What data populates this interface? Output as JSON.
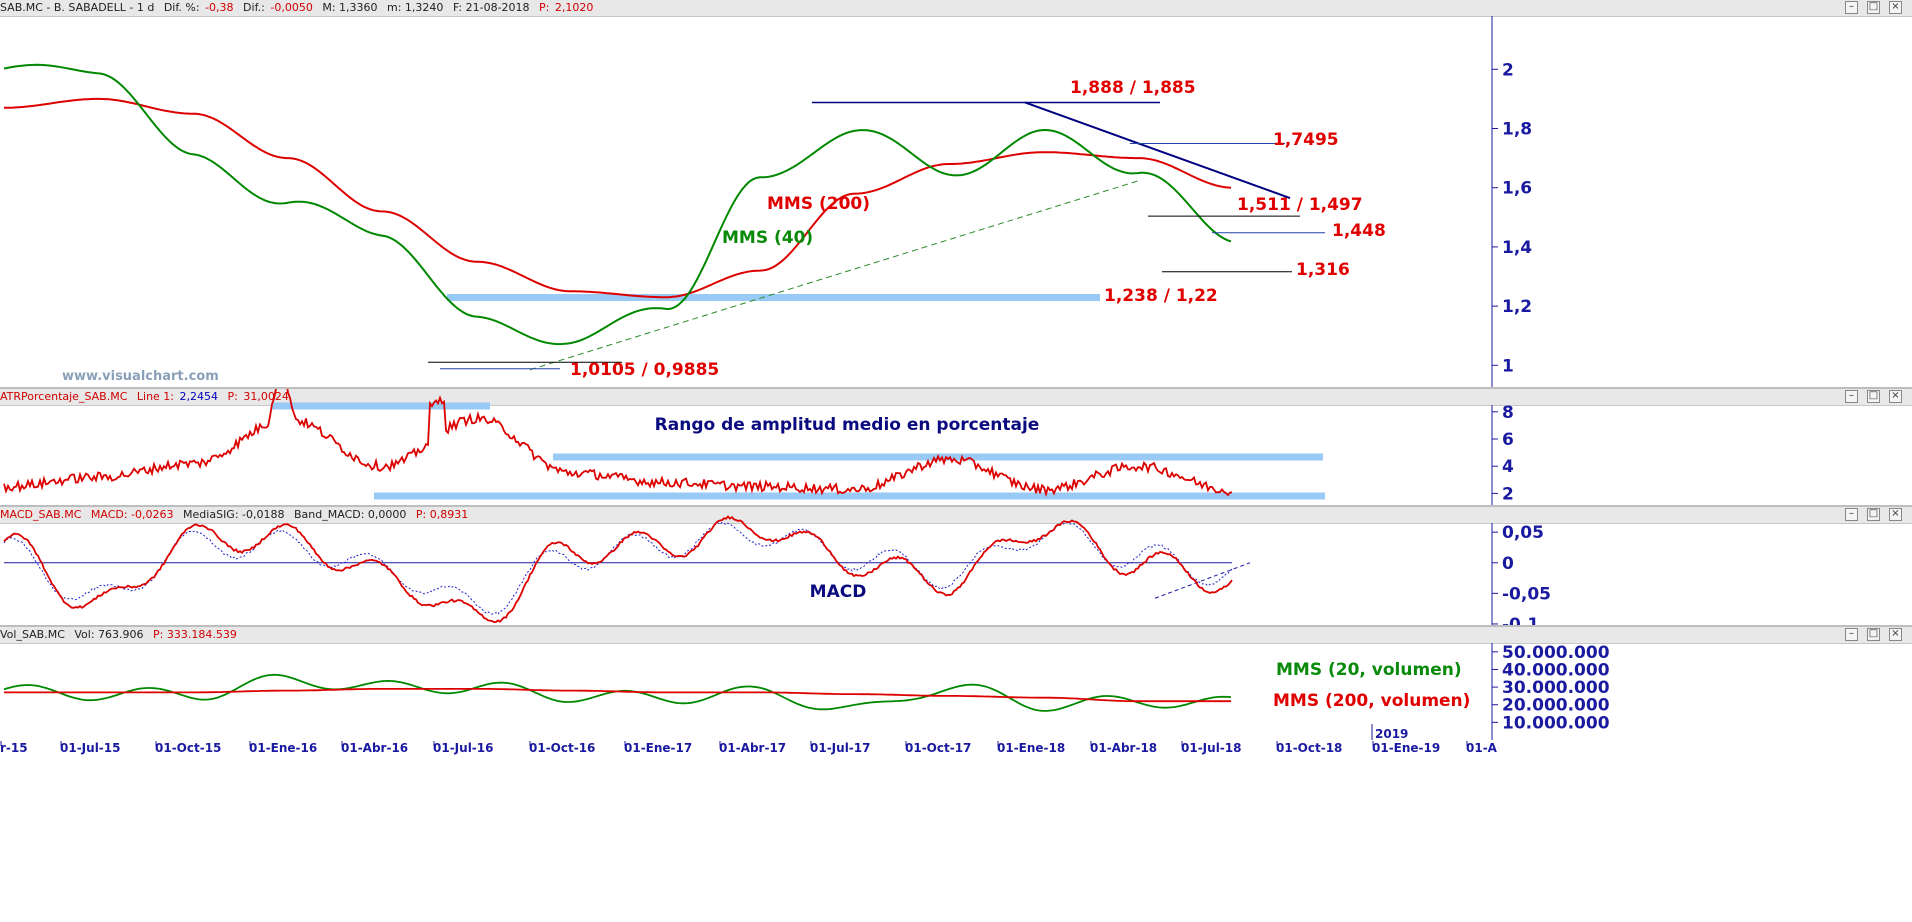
{
  "colors": {
    "price": "#0000dd",
    "mms40": "#008800",
    "mms200": "#dd0000",
    "navy": "#000080",
    "lightblue": "#99c9f5",
    "annotation_red": "#e00000",
    "annotation_navy": "#0b0b80",
    "annotation_green": "#0a8a0a"
  },
  "price_pane": {
    "header": {
      "symbol": "SAB.MC - B. SABADELL - 1 d",
      "dif_pct_label": "Dif. %:",
      "dif_pct": "-0,38",
      "dif_label": "Dif.:",
      "dif": "-0,0050",
      "max": "M: 1,3360",
      "min": "m: 1,3240",
      "date": "F: 21-08-2018",
      "p_label": "P:",
      "p": "2,1020"
    },
    "watermark": "www.visualchart.com",
    "y_ticks": [
      "2",
      "1,8",
      "1,6",
      "1,4",
      "1,2",
      "1"
    ],
    "annotations": {
      "top_resistance": "1,888 / 1,885",
      "r1": "1,7495",
      "r2": "1,511 / 1,497",
      "r3": "1,448",
      "last": "1,316",
      "support": "1,238 / 1,22",
      "bottom": "1,0105 / 0,9885",
      "mms200": "MMS (200)",
      "mms40": "MMS (40)"
    }
  },
  "atr_pane": {
    "header": {
      "name": "ATRPorcentaje_SAB.MC",
      "line": "Line 1:",
      "line_val": "2,2454",
      "p_label": "P:",
      "p": "31,0024"
    },
    "title": "Rango de amplitud medio en porcentaje",
    "y_ticks": [
      "8",
      "6",
      "4",
      "2"
    ]
  },
  "macd_pane": {
    "header": {
      "name": "MACD_SAB.MC",
      "macd": "MACD: -0,0263",
      "sig": "MediaSIG: -0,0188",
      "band": "Band_MACD: 0,0000",
      "p": "P: 0,8931"
    },
    "title": "MACD",
    "y_ticks": [
      "0,05",
      "0",
      "-0,05",
      "-0,1"
    ]
  },
  "vol_pane": {
    "header": {
      "name": "Vol_SAB.MC",
      "vol": "Vol: 763.906",
      "p": "P: 333.184.539"
    },
    "y_ticks": [
      "50.000.000",
      "40.000.000",
      "30.000.000",
      "20.000.000",
      "10.000.000"
    ],
    "legend_mms20": "MMS (20, volumen)",
    "legend_mms200": "MMS (200, volumen)",
    "year_marker": "2019"
  },
  "x_axis": {
    "labels": [
      "r-15",
      "01-Jul-15",
      "01-Oct-15",
      "01-Ene-16",
      "01-Abr-16",
      "01-Jul-16",
      "01-Oct-16",
      "01-Ene-17",
      "01-Abr-17",
      "01-Jul-17",
      "01-Oct-17",
      "01-Ene-18",
      "01-Abr-18",
      "01-Jul-18",
      "01-Oct-18",
      "01-Ene-19",
      "01-A"
    ]
  },
  "chart_data": [
    {
      "type": "line",
      "title": "SAB.MC - B. SABADELL - 1 d",
      "x": [
        "r-15",
        "01-Jul-15",
        "01-Oct-15",
        "01-Ene-16",
        "01-Abr-16",
        "01-Jul-16",
        "01-Oct-16",
        "01-Ene-17",
        "01-Abr-17",
        "01-Jul-17",
        "01-Oct-17",
        "01-Ene-18",
        "01-Abr-18",
        "01-Jul-18"
      ],
      "series": [
        {
          "values": [
            2.1,
            1.95,
            1.62,
            1.5,
            1.42,
            1.05,
            1.05,
            1.25,
            1.75,
            1.85,
            1.6,
            1.85,
            1.65,
            1.35
          ]
        },
        {
          "name": "MMS (40)",
          "values": [
            2.0,
            2.0,
            1.7,
            1.55,
            1.45,
            1.15,
            1.08,
            1.2,
            1.62,
            1.8,
            1.65,
            1.78,
            1.66,
            1.42
          ]
        },
        {
          "name": "MMS (200)",
          "values": [
            1.87,
            1.9,
            1.85,
            1.7,
            1.52,
            1.35,
            1.25,
            1.23,
            1.32,
            1.58,
            1.68,
            1.72,
            1.7,
            1.6
          ]
        }
      ],
      "ylim": [
        0.92,
        2.18
      ]
    },
    {
      "type": "line",
      "title": "Rango de amplitud medio en porcentaje",
      "x": [
        "r-15",
        "01-Jul-15",
        "01-Oct-15",
        "01-Ene-16",
        "01-Abr-16",
        "01-Jul-16",
        "01-Oct-16",
        "01-Ene-17",
        "01-Abr-17",
        "01-Jul-17",
        "01-Oct-17",
        "01-Ene-18",
        "01-Abr-18",
        "01-Jul-18"
      ],
      "series": [
        {
          "values": [
            2.5,
            3.2,
            4.2,
            7.5,
            4.0,
            7.5,
            3.5,
            2.8,
            2.5,
            2.3,
            4.5,
            2.3,
            4.0,
            2.2
          ]
        }
      ],
      "ylim": [
        1,
        8.5
      ]
    },
    {
      "type": "line",
      "title": "MACD",
      "x": [
        "r-15",
        "01-Jul-15",
        "01-Oct-15",
        "01-Ene-16",
        "01-Abr-16",
        "01-Jul-16",
        "01-Oct-16",
        "01-Ene-17",
        "01-Abr-17",
        "01-Jul-17",
        "01-Oct-17",
        "01-Ene-18",
        "01-Abr-18",
        "01-Jul-18"
      ],
      "series": [
        {
          "values": [
            0.03,
            -0.07,
            0.04,
            0.04,
            -0.02,
            -0.09,
            0.02,
            0.03,
            0.06,
            0.0,
            -0.03,
            0.06,
            0.0,
            -0.03
          ]
        },
        {
          "values": [
            0.02,
            -0.06,
            0.03,
            0.03,
            -0.01,
            -0.07,
            0.01,
            0.03,
            0.05,
            0.01,
            -0.02,
            0.05,
            0.01,
            -0.02
          ]
        }
      ],
      "ylim": [
        -0.105,
        0.065
      ]
    },
    {
      "type": "bar",
      "title": "Vol_SAB.MC",
      "x": [
        "r-15",
        "01-Jul-15",
        "01-Oct-15",
        "01-Ene-16",
        "01-Abr-16",
        "01-Jul-16",
        "01-Oct-16",
        "01-Ene-17",
        "01-Abr-17",
        "01-Jul-17",
        "01-Oct-17",
        "01-Ene-18",
        "01-Abr-18",
        "01-Jul-18"
      ],
      "series": [
        {
          "values": [
            28000000,
            26000000,
            27000000,
            35000000,
            30000000,
            30000000,
            25000000,
            25000000,
            27000000,
            20000000,
            30000000,
            22000000,
            22000000,
            20000000
          ]
        },
        {
          "name": "MMS (20, volumen)",
          "values": [
            28000000,
            26000000,
            26000000,
            34000000,
            30000000,
            30000000,
            25000000,
            24000000,
            27000000,
            17000000,
            30000000,
            20000000,
            22000000,
            21000000
          ]
        },
        {
          "name": "MMS (200, volumen)",
          "values": [
            27000000,
            27000000,
            27000000,
            28000000,
            29000000,
            29000000,
            28000000,
            27000000,
            27000000,
            26000000,
            25000000,
            24000000,
            22000000,
            22000000
          ]
        }
      ],
      "ylim": [
        0,
        55000000
      ]
    }
  ]
}
